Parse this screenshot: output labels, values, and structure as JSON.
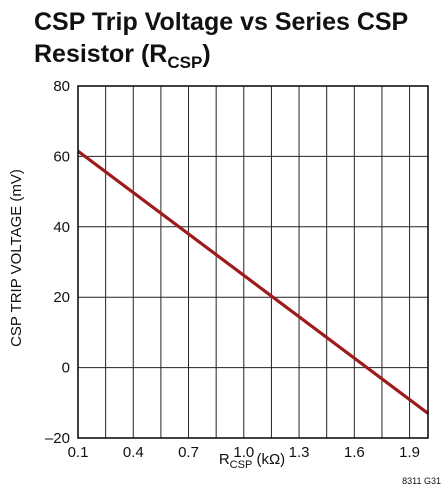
{
  "chart_data": {
    "type": "line",
    "title_line1": "CSP Trip Voltage vs Series CSP",
    "title_line2_main": "Resistor (R",
    "title_line2_sub": "CSP",
    "title_line2_end": ")",
    "xlabel_main": "R",
    "xlabel_sub": "CSP",
    "xlabel_unit": " (kΩ)",
    "ylabel": "CSP TRIP VOLTAGE (mV)",
    "figure_code": "8311 G31",
    "xlim": [
      0.1,
      2.0
    ],
    "ylim": [
      -20,
      80
    ],
    "x_ticks": [
      0.1,
      0.4,
      0.7,
      1.0,
      1.3,
      1.6,
      1.9
    ],
    "x_tick_labels": [
      "0.1",
      "0.4",
      "0.7",
      "1.0",
      "1.3",
      "1.6",
      "1.9"
    ],
    "y_ticks": [
      -20,
      0,
      20,
      40,
      60,
      80
    ],
    "y_tick_labels": [
      "–20",
      "0",
      "20",
      "40",
      "60",
      "80"
    ],
    "x_minor_grid": [
      0.25,
      0.55,
      0.85,
      1.15,
      1.45,
      1.75
    ],
    "grid": true,
    "line_color": "#9e1b1b",
    "series": [
      {
        "x": [
          0.1,
          2.0
        ],
        "y": [
          61.5,
          -13
        ]
      }
    ]
  }
}
